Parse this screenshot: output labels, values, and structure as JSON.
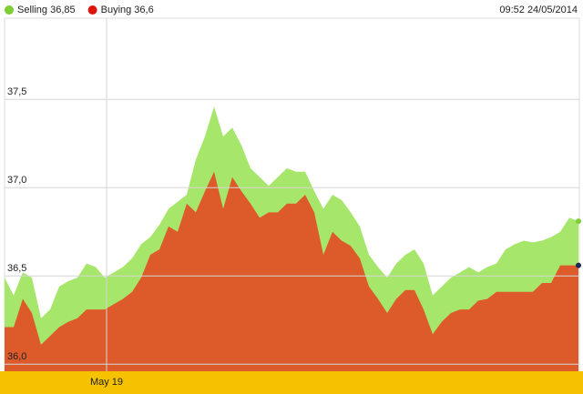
{
  "chart_data": {
    "type": "area",
    "timestamp": "09:52 24/05/2014",
    "categories": [
      null,
      null,
      null,
      null,
      null,
      null,
      null,
      null,
      null,
      null,
      null,
      "May 19",
      null,
      null,
      null,
      null,
      null,
      null,
      null,
      null,
      null,
      null,
      null,
      null,
      null,
      null,
      null,
      null,
      null,
      null,
      null,
      null,
      null,
      null,
      null,
      null,
      null,
      null,
      null,
      null,
      null,
      null,
      null,
      null,
      null,
      null,
      null,
      null,
      null,
      null,
      null,
      null,
      null,
      null,
      null,
      null,
      null,
      null,
      null,
      null,
      null,
      null,
      null,
      null
    ],
    "series": [
      {
        "name": "Selling 36,85",
        "color": "#a6e66a",
        "legend_color": "#7ccf34",
        "values": [
          36.49,
          36.39,
          36.52,
          36.49,
          36.26,
          36.31,
          36.44,
          36.47,
          36.49,
          36.57,
          36.55,
          36.49,
          36.52,
          36.55,
          36.6,
          36.68,
          36.72,
          36.79,
          36.88,
          36.92,
          36.96,
          37.16,
          37.29,
          37.46,
          37.29,
          37.34,
          37.24,
          37.11,
          37.06,
          37.01,
          37.06,
          37.11,
          37.09,
          37.09,
          36.98,
          36.88,
          36.96,
          36.93,
          36.86,
          36.78,
          36.62,
          36.55,
          36.49,
          36.57,
          36.62,
          36.65,
          36.57,
          36.39,
          36.44,
          36.49,
          36.52,
          36.55,
          36.52,
          36.55,
          36.57,
          36.65,
          36.68,
          36.7,
          36.69,
          36.7,
          36.72,
          36.75,
          36.83,
          36.81
        ]
      },
      {
        "name": "Buying 36,6",
        "color": "#dd5b2b",
        "legend_color": "#e0140e",
        "values": [
          36.21,
          36.21,
          36.37,
          36.29,
          36.11,
          36.16,
          36.21,
          36.24,
          36.26,
          36.31,
          36.31,
          36.31,
          36.34,
          36.37,
          36.41,
          36.49,
          36.62,
          36.65,
          36.78,
          36.75,
          36.91,
          36.86,
          36.98,
          37.09,
          36.88,
          37.06,
          36.98,
          36.91,
          36.83,
          36.86,
          36.86,
          36.91,
          36.91,
          36.96,
          36.86,
          36.62,
          36.75,
          36.7,
          36.67,
          36.6,
          36.44,
          36.37,
          36.29,
          36.37,
          36.42,
          36.42,
          36.31,
          36.17,
          36.24,
          36.29,
          36.31,
          36.31,
          36.36,
          36.37,
          36.41,
          36.41,
          36.41,
          36.41,
          36.41,
          36.46,
          36.46,
          36.56,
          36.56,
          36.56
        ]
      }
    ],
    "ylim": [
      35.96,
      37.96
    ],
    "yticks": [
      {
        "value": 36,
        "label": "36,0"
      },
      {
        "value": 36.5,
        "label": "36,5"
      },
      {
        "value": 37,
        "label": "37,0"
      },
      {
        "value": 37.5,
        "label": "37,5"
      }
    ],
    "grid": true
  }
}
